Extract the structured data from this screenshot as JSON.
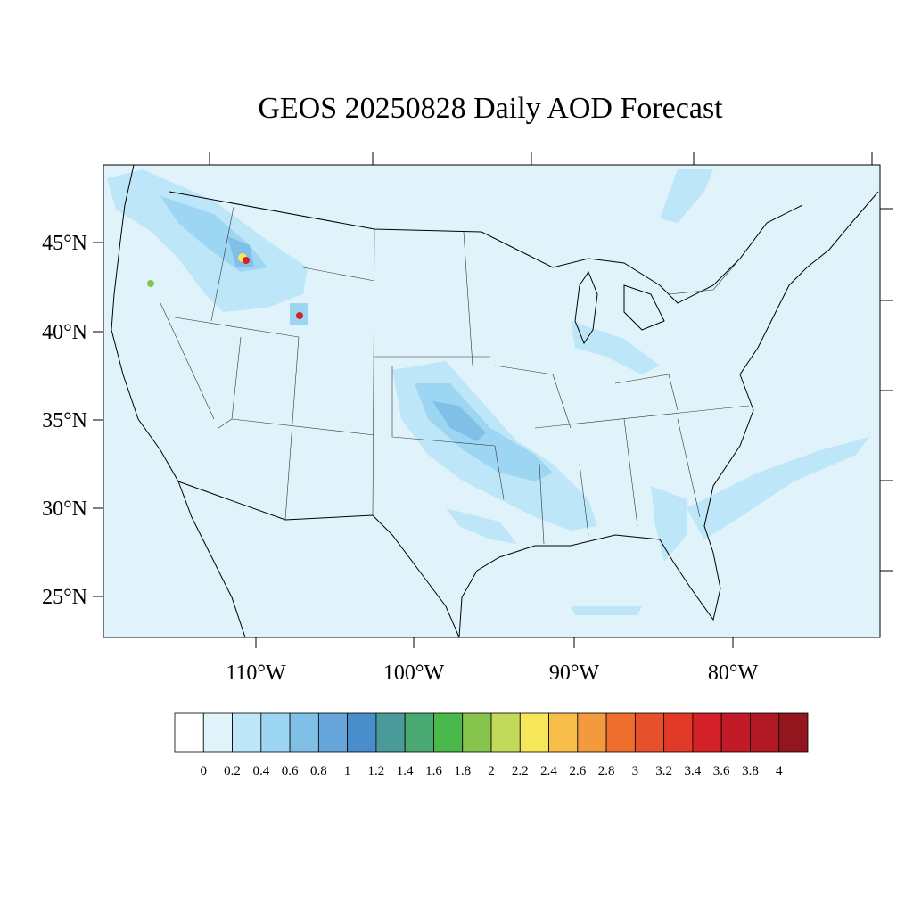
{
  "title": "GEOS 20250828 Daily AOD Forecast",
  "lat_labels": [
    "45°N",
    "40°N",
    "35°N",
    "30°N",
    "25°N"
  ],
  "lon_labels": [
    "110°W",
    "100°W",
    "90°W",
    "80°W"
  ],
  "colorbar": {
    "labels": [
      "0",
      "0.2",
      "0.4",
      "0.6",
      "0.8",
      "1",
      "1.2",
      "1.4",
      "1.6",
      "1.8",
      "2",
      "2.2",
      "2.4",
      "2.6",
      "2.8",
      "3",
      "3.2",
      "3.4",
      "3.6",
      "3.8",
      "4"
    ],
    "colors": [
      "#ffffff",
      "#e0f3fb",
      "#bde6f8",
      "#9dd6f2",
      "#80bfe6",
      "#66a6da",
      "#4a8dcb",
      "#4a9a9a",
      "#4aa872",
      "#4ab84a",
      "#86c44e",
      "#c2d95a",
      "#f6e65a",
      "#f7bf4a",
      "#f39a3e",
      "#ef6e2e",
      "#e6502b",
      "#e13a28",
      "#d42028",
      "#c21a27",
      "#b01924",
      "#93151e"
    ]
  }
}
